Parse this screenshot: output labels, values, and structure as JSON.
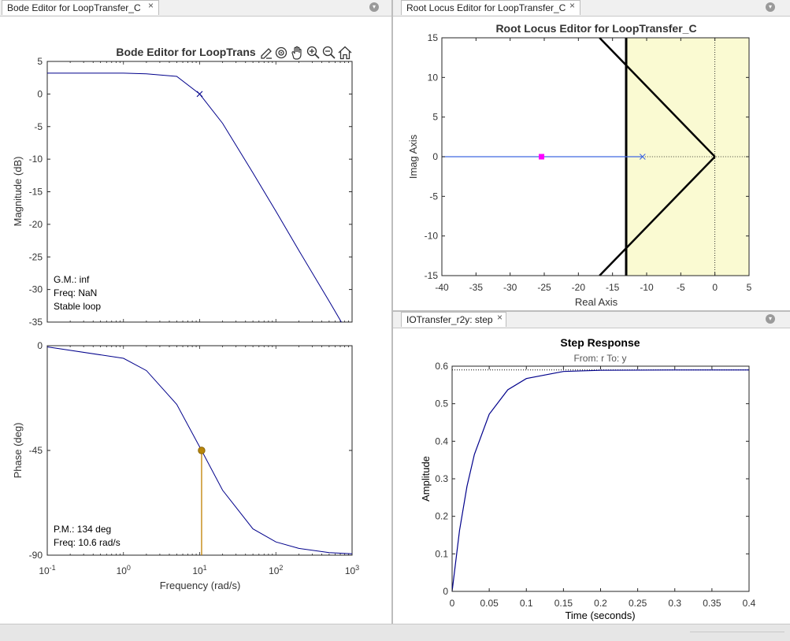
{
  "tabs": {
    "bode": {
      "label": "Bode Editor for LoopTransfer_C",
      "close": "×"
    },
    "rlocus": {
      "label": "Root Locus Editor for LoopTransfer_C",
      "close": "×"
    },
    "step": {
      "label": "IOTransfer_r2y: step",
      "close": "×"
    },
    "menu_glyph": "▾"
  },
  "bode": {
    "title": "Bode Editor for LoopTrans",
    "toolbar_icons": [
      "edit-icon",
      "target-icon",
      "pan-hand-icon",
      "zoom-in-icon",
      "zoom-out-icon",
      "home-icon"
    ],
    "magnitude": {
      "ylabel": "Magnitude (dB)",
      "ylim": [
        -35,
        5
      ],
      "yticks": [
        "5",
        "0",
        "-5",
        "-10",
        "-15",
        "-20",
        "-25",
        "-30",
        "-35"
      ],
      "annotation": [
        "G.M.: inf",
        "Freq: NaN",
        "Stable loop"
      ]
    },
    "phase": {
      "ylabel": "Phase (deg)",
      "ylim": [
        -90,
        0
      ],
      "yticks": [
        "0",
        "-45",
        "-90"
      ],
      "annotation": [
        "P.M.: 134 deg",
        "Freq: 10.6 rad/s"
      ]
    },
    "xlabel": "Frequency (rad/s)",
    "xticks": [
      {
        "base": "10",
        "exp": "-1"
      },
      {
        "base": "10",
        "exp": "0"
      },
      {
        "base": "10",
        "exp": "1"
      },
      {
        "base": "10",
        "exp": "2"
      },
      {
        "base": "10",
        "exp": "3"
      }
    ]
  },
  "rlocus": {
    "title": "Root Locus Editor for LoopTransfer_C",
    "xlabel": "Real Axis",
    "ylabel": "Imag Axis",
    "xticks": [
      "-40",
      "-35",
      "-30",
      "-25",
      "-20",
      "-15",
      "-10",
      "-5",
      "0",
      "5"
    ],
    "yticks": [
      "15",
      "10",
      "5",
      "0",
      "-5",
      "-10",
      "-15"
    ]
  },
  "step": {
    "title": "Step Response",
    "subtitle": "From: r  To: y",
    "xlabel": "Time (seconds)",
    "ylabel": "Amplitude",
    "xticks": [
      "0",
      "0.05",
      "0.1",
      "0.15",
      "0.2",
      "0.25",
      "0.3",
      "0.35",
      "0.4"
    ],
    "yticks": [
      "0.6",
      "0.5",
      "0.4",
      "0.3",
      "0.2",
      "0.1",
      "0"
    ]
  },
  "chart_data": [
    {
      "type": "line",
      "title": "Bode Editor for LoopTrans",
      "ylabel": "Magnitude (dB)",
      "xlabel": "Frequency (rad/s)",
      "xscale": "log",
      "xlim": [
        0.1,
        1000
      ],
      "ylim": [
        -35,
        5
      ],
      "series": [
        {
          "x": [
            0.1,
            1,
            2,
            5,
            10,
            20,
            50,
            100,
            200,
            500,
            1000
          ],
          "values": [
            3.2,
            3.2,
            3.1,
            2.7,
            0.0,
            -4.5,
            -12.1,
            -18.0,
            -24.0,
            -31.8,
            -37.8
          ]
        }
      ],
      "markers": [
        {
          "x": 10,
          "y": 0.0,
          "symbol": "x"
        }
      ],
      "grid": false,
      "color": "#00008b"
    },
    {
      "type": "line",
      "ylabel": "Phase (deg)",
      "xlabel": "Frequency (rad/s)",
      "xscale": "log",
      "xlim": [
        0.1,
        1000
      ],
      "ylim": [
        -90,
        0
      ],
      "series": [
        {
          "x": [
            0.1,
            1,
            2,
            5,
            10.6,
            20,
            50,
            100,
            200,
            500,
            1000
          ],
          "values": [
            -0.5,
            -5.4,
            -10.7,
            -25.2,
            -45.0,
            -62.1,
            -78.7,
            -84.3,
            -87.1,
            -88.9,
            -89.4
          ]
        }
      ],
      "markers": [
        {
          "x": 10.6,
          "y": -45.0,
          "symbol": "o"
        }
      ],
      "grid": false,
      "color": "#00008b"
    },
    {
      "type": "scatter",
      "title": "Root Locus Editor for LoopTransfer_C",
      "xlabel": "Real Axis",
      "ylabel": "Imag Axis",
      "xlim": [
        -40,
        5
      ],
      "ylim": [
        -15,
        15
      ],
      "poles": [
        {
          "x": -10.6,
          "y": 0
        }
      ],
      "closed_loop_poles": [
        {
          "x": -25.4,
          "y": 0
        }
      ],
      "locus": [
        {
          "x": [
            -40,
            -10.6
          ],
          "y": [
            0,
            0
          ]
        }
      ],
      "damping_boundary_real": -13,
      "stability_boundary_real": 0,
      "grid": false
    },
    {
      "type": "line",
      "title": "Step Response",
      "subtitle": "From: r  To: y",
      "xlabel": "Time (seconds)",
      "ylabel": "Amplitude",
      "xlim": [
        0,
        0.4
      ],
      "ylim": [
        0,
        0.6
      ],
      "final_value": 0.59,
      "series": [
        {
          "x": [
            0,
            0.01,
            0.02,
            0.03,
            0.05,
            0.075,
            0.1,
            0.15,
            0.2,
            0.3,
            0.4
          ],
          "values": [
            0,
            0.162,
            0.28,
            0.365,
            0.472,
            0.537,
            0.567,
            0.586,
            0.589,
            0.59,
            0.59
          ]
        }
      ],
      "grid": false,
      "color": "#00008b"
    }
  ]
}
